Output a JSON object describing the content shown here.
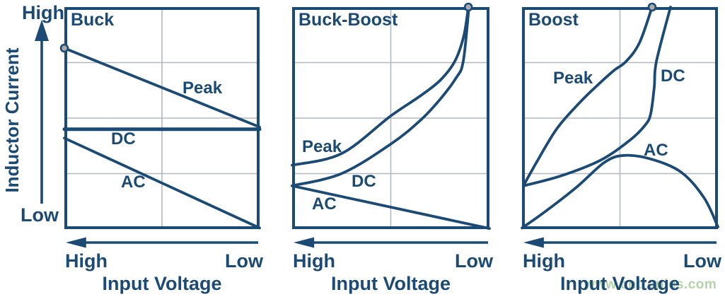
{
  "colors": {
    "navy": "#1B4A75",
    "grid": "#B2B8BF",
    "marker_fill": "#ABABAB",
    "watermark_green": "#A6CD97",
    "background": "#FFFFFF"
  },
  "y_axis": {
    "top_label": "High",
    "bottom_label": "Low",
    "title": "Inductor Current"
  },
  "x_axis": {
    "left_label": "High",
    "right_label": "Low",
    "title": "Input Voltage",
    "arrow_direction": "left"
  },
  "watermark": {
    "text": "www.cntronics.com"
  },
  "icons": {
    "y_axis_arrow": "up-arrow",
    "x_axis_arrow": "left-arrow",
    "curve_endpoint": "gray-dot-marker"
  },
  "chart_data": [
    {
      "type": "line",
      "title": "Buck",
      "xlabel": "Input Voltage (High to Low)",
      "ylabel": "Inductor Current (Low to High)",
      "grid": true,
      "axes_qualitative": true,
      "marker_point": [
        0,
        0.815
      ],
      "series": [
        {
          "name": "Peak",
          "trend": "linear decrease",
          "points": [
            [
              0,
              0.815
            ],
            [
              1,
              0.46
            ]
          ]
        },
        {
          "name": "DC",
          "trend": "constant",
          "stroke_width": 5,
          "points": [
            [
              0,
              0.45
            ],
            [
              1,
              0.45
            ]
          ]
        },
        {
          "name": "AC",
          "trend": "linear decrease to zero",
          "points": [
            [
              0,
              0.41
            ],
            [
              1,
              0.005
            ]
          ]
        }
      ]
    },
    {
      "type": "line",
      "title": "Buck-Boost",
      "xlabel": "Input Voltage (High to Low)",
      "ylabel": "Inductor Current (Low to High)",
      "grid": true,
      "axes_qualitative": true,
      "marker_point": [
        0.893,
        1
      ],
      "series": [
        {
          "name": "Peak",
          "trend": "exponential increase",
          "points": [
            [
              0,
              0.288
            ],
            [
              0.25,
              0.34
            ],
            [
              0.5,
              0.51
            ],
            [
              0.65,
              0.6
            ],
            [
              0.75,
              0.67
            ],
            [
              0.824,
              0.755
            ],
            [
              0.87,
              0.87
            ],
            [
              0.893,
              1
            ]
          ]
        },
        {
          "name": "DC",
          "trend": "exponential increase",
          "points": [
            [
              0,
              0.195
            ],
            [
              0.25,
              0.25
            ],
            [
              0.5,
              0.383
            ],
            [
              0.65,
              0.49
            ],
            [
              0.75,
              0.585
            ],
            [
              0.83,
              0.68
            ],
            [
              0.867,
              0.755
            ],
            [
              0.896,
              1
            ]
          ]
        },
        {
          "name": "AC",
          "trend": "linear decrease to zero",
          "points": [
            [
              0,
              0.195
            ],
            [
              1,
              0.003
            ]
          ]
        }
      ]
    },
    {
      "type": "line",
      "title": "Boost",
      "xlabel": "Input Voltage (High to Low)",
      "ylabel": "Inductor Current (Low to High)",
      "grid": true,
      "axes_qualitative": true,
      "marker_point": [
        0.664,
        1
      ],
      "series": [
        {
          "name": "Peak",
          "trend": "s-shaped increase",
          "points": [
            [
              0.007,
              0.195
            ],
            [
              0.08,
              0.31
            ],
            [
              0.18,
              0.455
            ],
            [
              0.3,
              0.575
            ],
            [
              0.4,
              0.66
            ],
            [
              0.47,
              0.715
            ],
            [
              0.531,
              0.755
            ],
            [
              0.6,
              0.84
            ],
            [
              0.664,
              1
            ]
          ]
        },
        {
          "name": "DC",
          "trend": "steep exponential increase",
          "points": [
            [
              0.007,
              0.195
            ],
            [
              0.2,
              0.24
            ],
            [
              0.4,
              0.31
            ],
            [
              0.55,
              0.4
            ],
            [
              0.63,
              0.47
            ],
            [
              0.657,
              0.52
            ],
            [
              0.675,
              0.64
            ],
            [
              0.686,
              0.755
            ],
            [
              0.758,
              1
            ]
          ]
        },
        {
          "name": "AC",
          "trend": "dome peaking at mid voltage",
          "points": [
            [
              0,
              0.005
            ],
            [
              0.12,
              0.08
            ],
            [
              0.28,
              0.19
            ],
            [
              0.42,
              0.3
            ],
            [
              0.52,
              0.332
            ],
            [
              0.66,
              0.315
            ],
            [
              0.813,
              0.256
            ],
            [
              0.93,
              0.14
            ],
            [
              1,
              0.01
            ]
          ]
        }
      ]
    }
  ]
}
